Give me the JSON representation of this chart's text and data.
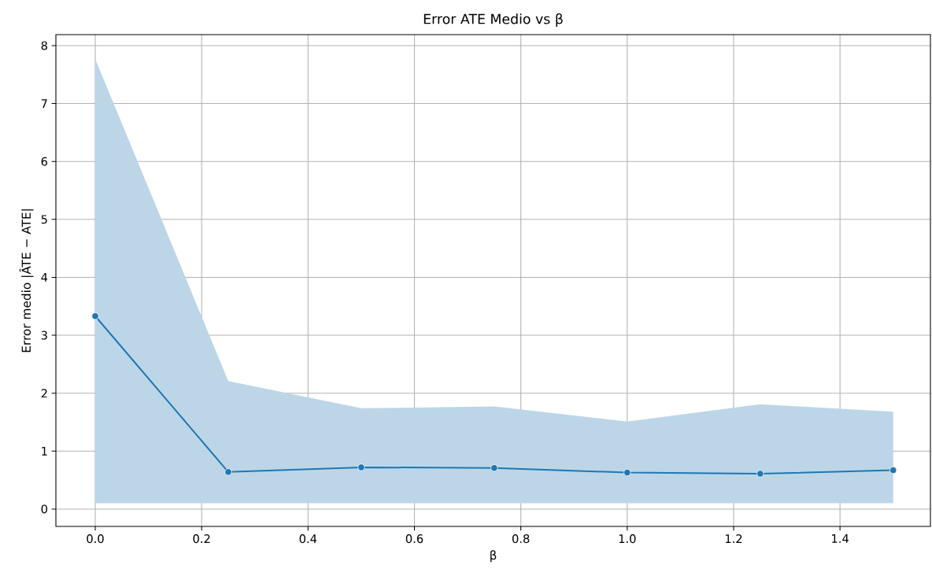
{
  "chart_data": {
    "type": "line",
    "title": "Error ATE Medio vs β",
    "xlabel": "β",
    "ylabel": "Error medio |ÂTE − ATE|",
    "x": [
      0,
      0.25,
      0.5,
      0.75,
      1.0,
      1.25,
      1.5
    ],
    "series": [
      {
        "color": "#1f77b4",
        "values": [
          3.33,
          0.64,
          0.72,
          0.71,
          0.63,
          0.61,
          0.67
        ],
        "lower": [
          0.1,
          0.1,
          0.1,
          0.1,
          0.1,
          0.1,
          0.1
        ],
        "upper": [
          7.77,
          2.21,
          1.74,
          1.77,
          1.51,
          1.81,
          1.68
        ]
      }
    ],
    "xlim": [
      -0.074,
      1.57
    ],
    "ylim": [
      -0.3,
      8.19
    ],
    "xticks": [
      {
        "value": 0,
        "label": "0.0"
      },
      {
        "value": 0.2,
        "label": "0.2"
      },
      {
        "value": 0.4,
        "label": "0.4"
      },
      {
        "value": 0.6,
        "label": "0.6"
      },
      {
        "value": 0.8,
        "label": "0.8"
      },
      {
        "value": 1.0,
        "label": "1.0"
      },
      {
        "value": 1.2,
        "label": "1.2"
      },
      {
        "value": 1.4,
        "label": "1.4"
      }
    ],
    "yticks": [
      0,
      1,
      2,
      3,
      4,
      5,
      6,
      7,
      8
    ],
    "grid": true,
    "marker": "circle",
    "line_style": "solid"
  }
}
